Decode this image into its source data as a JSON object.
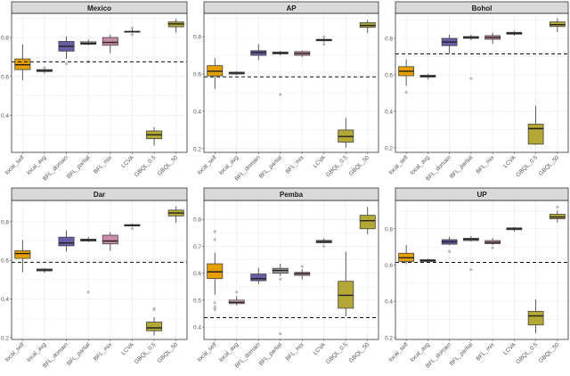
{
  "chart_data": {
    "type": "boxplot",
    "grid": true,
    "categories": [
      "local_self",
      "local_avg",
      "BFL_domain",
      "BFL_partial",
      "BFL_mix",
      "LCVA",
      "GBQL_0.5",
      "GBQL_50"
    ],
    "colors": {
      "local_self": "#E69F00",
      "local_avg": "#D9A3BE",
      "BFL_domain": "#6B5AA6",
      "BFL_partial": "#9A9A9A",
      "BFL_mix": "#C98BA8",
      "LCVA": "#A8A8A8",
      "GBQL_0.5": "#B3A736",
      "GBQL_50": "#B3A736"
    },
    "reference_line_style": "dashed",
    "panels": [
      {
        "title": "Mexico",
        "ylim": [
          0.21,
          0.924
        ],
        "yticks": [
          0.4,
          0.6,
          0.8
        ],
        "reference": 0.675,
        "boxes": [
          [
            0.58,
            0.635,
            0.66,
            0.69,
            0.765
          ],
          [
            0.615,
            0.625,
            0.63,
            0.635,
            0.645
          ],
          [
            0.69,
            0.73,
            0.755,
            0.78,
            0.805
          ],
          [
            0.76,
            0.765,
            0.77,
            0.778,
            0.79
          ],
          [
            0.72,
            0.76,
            0.775,
            0.8,
            0.815
          ],
          [
            0.825,
            0.828,
            0.83,
            0.832,
            0.845
          ],
          [
            0.245,
            0.28,
            0.3,
            0.32,
            0.34
          ],
          [
            0.825,
            0.855,
            0.87,
            0.88,
            0.895
          ]
        ],
        "outliers": [
          [],
          [
            0.645
          ],
          [
            0.665
          ],
          [
            0.675
          ],
          [],
          [
            0.815,
            0.85
          ],
          [],
          []
        ]
      },
      {
        "title": "AP",
        "ylim": [
          0.18,
          0.925
        ],
        "yticks": [
          0.2,
          0.4,
          0.6,
          0.8
        ],
        "reference": 0.585,
        "boxes": [
          [
            0.52,
            0.59,
            0.615,
            0.645,
            0.685
          ],
          [
            0.595,
            0.6,
            0.605,
            0.61,
            0.615
          ],
          [
            0.675,
            0.7,
            0.715,
            0.725,
            0.76
          ],
          [
            0.7,
            0.708,
            0.712,
            0.718,
            0.725
          ],
          [
            0.69,
            0.7,
            0.71,
            0.72,
            0.725
          ],
          [
            0.77,
            0.778,
            0.782,
            0.786,
            0.795
          ],
          [
            0.205,
            0.235,
            0.265,
            0.3,
            0.365
          ],
          [
            0.82,
            0.85,
            0.86,
            0.875,
            0.89
          ]
        ],
        "outliers": [
          [],
          [],
          [],
          [
            0.49
          ],
          [],
          [
            0.76,
            0.8
          ],
          [],
          []
        ]
      },
      {
        "title": "Bohol",
        "ylim": [
          0.175,
          0.937
        ],
        "yticks": [
          0.2,
          0.4,
          0.6,
          0.8
        ],
        "reference": 0.715,
        "boxes": [
          [
            0.54,
            0.595,
            0.62,
            0.645,
            0.685
          ],
          [
            0.575,
            0.588,
            0.592,
            0.598,
            0.605
          ],
          [
            0.715,
            0.76,
            0.78,
            0.8,
            0.82
          ],
          [
            0.79,
            0.8,
            0.805,
            0.81,
            0.82
          ],
          [
            0.77,
            0.795,
            0.805,
            0.815,
            0.83
          ],
          [
            0.815,
            0.823,
            0.828,
            0.833,
            0.84
          ],
          [
            0.215,
            0.22,
            0.305,
            0.33,
            0.43
          ],
          [
            0.835,
            0.865,
            0.875,
            0.89,
            0.91
          ]
        ],
        "outliers": [
          [
            0.505
          ],
          [],
          [],
          [
            0.58
          ],
          [],
          [],
          [],
          []
        ]
      },
      {
        "title": "Dar",
        "ylim": [
          0.19,
          0.91
        ],
        "yticks": [
          0.2,
          0.4,
          0.6,
          0.8
        ],
        "reference": 0.59,
        "boxes": [
          [
            0.54,
            0.61,
            0.635,
            0.65,
            0.705
          ],
          [
            0.535,
            0.545,
            0.55,
            0.555,
            0.56
          ],
          [
            0.645,
            0.675,
            0.69,
            0.72,
            0.755
          ],
          [
            0.695,
            0.7,
            0.705,
            0.71,
            0.72
          ],
          [
            0.65,
            0.685,
            0.7,
            0.73,
            0.745
          ],
          [
            0.775,
            0.778,
            0.78,
            0.785,
            0.79
          ],
          [
            0.21,
            0.235,
            0.25,
            0.28,
            0.305
          ],
          [
            0.795,
            0.83,
            0.845,
            0.86,
            0.88
          ]
        ],
        "outliers": [
          [],
          [],
          [],
          [
            0.435
          ],
          [],
          [
            0.765
          ],
          [
            0.35,
            0.345
          ],
          []
        ]
      },
      {
        "title": "Pemba",
        "ylim": [
          0.354,
          0.87
        ],
        "yticks": [
          0.4,
          0.5,
          0.6,
          0.7,
          0.8
        ],
        "reference": 0.435,
        "boxes": [
          [
            0.52,
            0.58,
            0.605,
            0.635,
            0.675
          ],
          [
            0.48,
            0.487,
            0.492,
            0.5,
            0.515
          ],
          [
            0.56,
            0.572,
            0.58,
            0.597,
            0.62
          ],
          [
            0.59,
            0.6,
            0.61,
            0.618,
            0.635
          ],
          [
            0.578,
            0.592,
            0.598,
            0.603,
            0.615
          ],
          [
            0.71,
            0.713,
            0.717,
            0.722,
            0.73
          ],
          [
            0.44,
            0.47,
            0.518,
            0.57,
            0.68
          ],
          [
            0.745,
            0.765,
            0.795,
            0.815,
            0.845
          ]
        ],
        "outliers": [
          [
            0.755,
            0.725,
            0.49,
            0.475,
            0.465,
            0.47
          ],
          [
            0.53
          ],
          [],
          [
            0.578,
            0.375
          ],
          [
            0.625
          ],
          [
            0.7
          ],
          [],
          []
        ]
      },
      {
        "title": "UP",
        "ylim": [
          0.19,
          0.956
        ],
        "yticks": [
          0.2,
          0.4,
          0.6,
          0.8
        ],
        "reference": 0.615,
        "boxes": [
          [
            0.605,
            0.62,
            0.64,
            0.665,
            0.71
          ],
          [
            0.615,
            0.62,
            0.625,
            0.63,
            0.635
          ],
          [
            0.71,
            0.715,
            0.728,
            0.74,
            0.755
          ],
          [
            0.73,
            0.735,
            0.742,
            0.748,
            0.76
          ],
          [
            0.71,
            0.718,
            0.725,
            0.735,
            0.75
          ],
          [
            0.785,
            0.795,
            0.8,
            0.805,
            0.81
          ],
          [
            0.225,
            0.27,
            0.32,
            0.345,
            0.41
          ],
          [
            0.835,
            0.855,
            0.865,
            0.88,
            0.9
          ]
        ],
        "outliers": [
          [],
          [],
          [
            0.675
          ],
          [
            0.575
          ],
          [
            0.695
          ],
          [],
          [],
          [
            0.92
          ]
        ]
      }
    ]
  }
}
